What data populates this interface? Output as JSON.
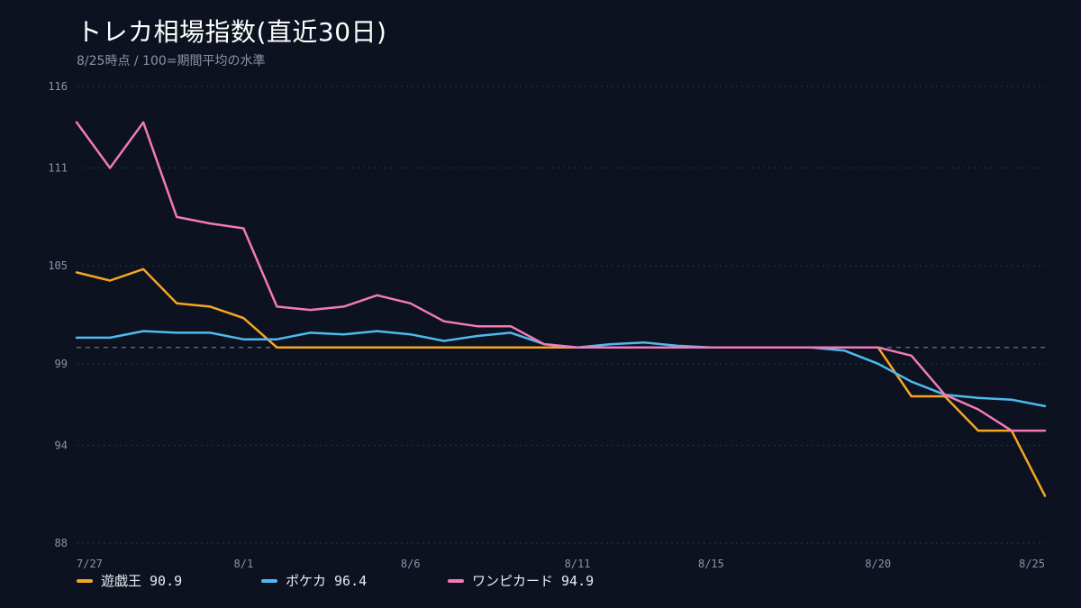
{
  "chart_data": {
    "type": "line",
    "title": "トレカ相場指数(直近30日)",
    "subtitle": "8/25時点 / 100=期間平均の水準",
    "x": [
      "7/27",
      "7/28",
      "7/29",
      "7/30",
      "7/31",
      "8/1",
      "8/2",
      "8/3",
      "8/4",
      "8/5",
      "8/6",
      "8/7",
      "8/8",
      "8/9",
      "8/10",
      "8/11",
      "8/12",
      "8/13",
      "8/14",
      "8/15",
      "8/16",
      "8/17",
      "8/18",
      "8/19",
      "8/20",
      "8/21",
      "8/22",
      "8/23",
      "8/24",
      "8/25"
    ],
    "x_tick_labels": [
      "7/27",
      "8/1",
      "8/6",
      "8/11",
      "8/15",
      "8/20",
      "8/25"
    ],
    "y_ticks": [
      88,
      94,
      99,
      105,
      111,
      116
    ],
    "ylim": [
      88,
      116
    ],
    "reference_line": 100,
    "grid": true,
    "legend_position": "bottom",
    "series": [
      {
        "name": "遊戯王",
        "color": "#f5a623",
        "label": "遊戯王 90.9",
        "values": [
          104.6,
          104.1,
          104.8,
          102.7,
          102.5,
          101.8,
          100.0,
          100.0,
          100.0,
          100.0,
          100.0,
          100.0,
          100.0,
          100.0,
          100.0,
          100.0,
          100.0,
          100.0,
          100.0,
          100.0,
          100.0,
          100.0,
          100.0,
          100.0,
          100.0,
          97.0,
          97.0,
          94.9,
          94.9,
          90.9
        ]
      },
      {
        "name": "ポケカ",
        "color": "#4dbaf0",
        "label": "ポケカ 96.4",
        "values": [
          100.6,
          100.6,
          101.0,
          100.9,
          100.9,
          100.5,
          100.5,
          100.9,
          100.8,
          101.0,
          100.8,
          100.4,
          100.7,
          100.9,
          100.2,
          100.0,
          100.2,
          100.3,
          100.1,
          100.0,
          100.0,
          100.0,
          100.0,
          99.8,
          99.0,
          97.9,
          97.1,
          96.9,
          96.8,
          96.4
        ]
      },
      {
        "name": "ワンピカード",
        "color": "#f27ab8",
        "label": "ワンピカード 94.9",
        "values": [
          113.8,
          111.0,
          113.8,
          108.0,
          107.6,
          107.3,
          102.5,
          102.3,
          102.5,
          103.2,
          102.7,
          101.6,
          101.3,
          101.3,
          100.2,
          100.0,
          100.0,
          100.0,
          100.0,
          100.0,
          100.0,
          100.0,
          100.0,
          100.0,
          100.0,
          99.5,
          97.1,
          96.2,
          94.9,
          94.9
        ]
      }
    ]
  }
}
